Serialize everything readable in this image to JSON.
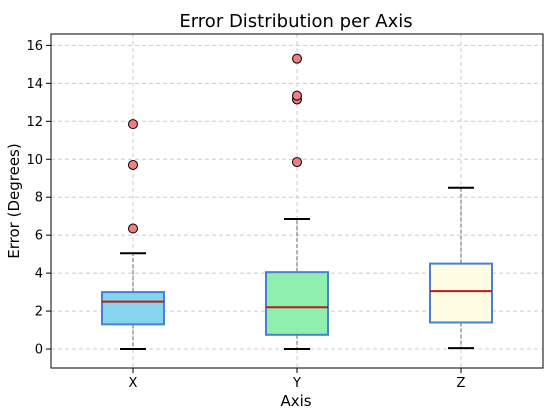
{
  "chart_data": {
    "type": "box",
    "title": "Error Distribution per Axis",
    "xlabel": "Axis",
    "ylabel": "Error (Degrees)",
    "ylim": [
      -1,
      16.6
    ],
    "yticks": [
      0,
      2,
      4,
      6,
      8,
      10,
      12,
      14,
      16
    ],
    "grid": true,
    "categories": [
      "X",
      "Y",
      "Z"
    ],
    "boxes": [
      {
        "category": "X",
        "min": 0.0,
        "q1": 1.3,
        "median": 2.5,
        "q3": 3.0,
        "max": 5.05,
        "outliers": [
          6.35,
          9.7,
          11.85
        ],
        "fill": "#87d5ec",
        "edge": "#4a7fd6"
      },
      {
        "category": "Y",
        "min": 0.0,
        "q1": 0.75,
        "median": 2.2,
        "q3": 4.05,
        "max": 6.85,
        "outliers": [
          9.85,
          13.15,
          13.35,
          15.3
        ],
        "fill": "#8ef0ac",
        "edge": "#4a7fd6"
      },
      {
        "category": "Z",
        "min": 0.05,
        "q1": 1.4,
        "median": 3.05,
        "q3": 4.5,
        "max": 8.5,
        "outliers": [],
        "fill": "#fffde4",
        "edge": "#4a7fd6"
      }
    ],
    "colors": {
      "median": "#c01818",
      "whisker": "#808080",
      "cap": "#000000",
      "outlier_fill": "#f08080",
      "outlier_edge": "#000000"
    }
  }
}
